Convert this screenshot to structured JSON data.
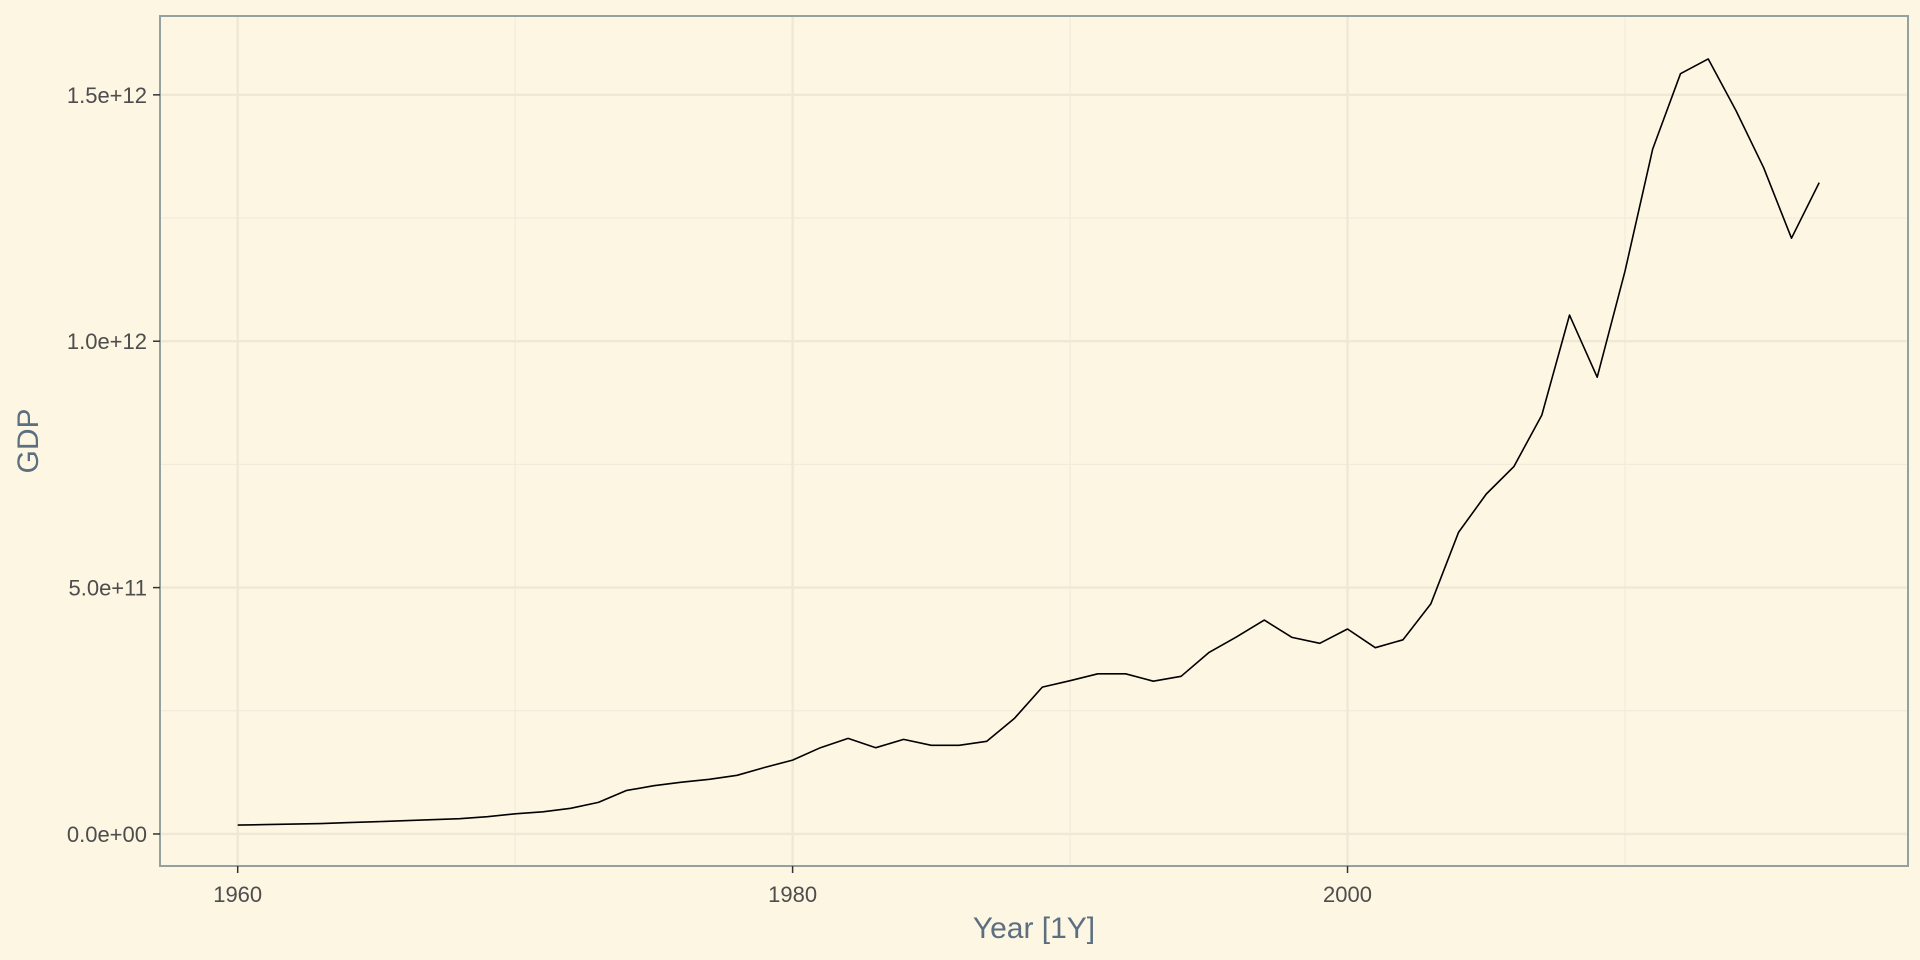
{
  "chart_data": {
    "type": "line",
    "xlabel": "Year [1Y]",
    "ylabel": "GDP",
    "xlim": [
      1957.2,
      2020.2
    ],
    "ylim": [
      -65000000000.0,
      1660000000000.0
    ],
    "x_ticks": [
      {
        "value": 1960,
        "label": "1960"
      },
      {
        "value": 1980,
        "label": "1980"
      },
      {
        "value": 2000,
        "label": "2000"
      }
    ],
    "x_minor_ticks": [
      1970,
      1990,
      2010
    ],
    "y_ticks": [
      {
        "value": 0,
        "label": "0.0e+00"
      },
      {
        "value": 500000000000,
        "label": "5.0e+11"
      },
      {
        "value": 1000000000000,
        "label": "1.0e+12"
      },
      {
        "value": 1500000000000,
        "label": "1.5e+12"
      }
    ],
    "y_minor_ticks": [
      250000000000,
      750000000000,
      1250000000000
    ],
    "grid": true,
    "series": [
      {
        "color": "#000000",
        "x": [
          1960,
          1961,
          1962,
          1963,
          1964,
          1965,
          1966,
          1967,
          1968,
          1969,
          1970,
          1971,
          1972,
          1973,
          1974,
          1975,
          1976,
          1977,
          1978,
          1979,
          1980,
          1981,
          1982,
          1983,
          1984,
          1985,
          1986,
          1987,
          1988,
          1989,
          1990,
          1991,
          1992,
          1993,
          1994,
          1995,
          1996,
          1997,
          1998,
          1999,
          2000,
          2001,
          2002,
          2003,
          2004,
          2005,
          2006,
          2007,
          2008,
          2009,
          2010,
          2011,
          2012,
          2013,
          2014,
          2015,
          2016,
          2017
        ],
        "values": [
          18000000000.0,
          19000000000.0,
          20000000000.0,
          21000000000.0,
          23000000000.0,
          25000000000.0,
          27000000000.0,
          29000000000.0,
          31000000000.0,
          35000000000.0,
          41000000000.0,
          45000000000.0,
          52000000000.0,
          64000000000.0,
          88000000000.0,
          98000000000.0,
          105000000000.0,
          111000000000.0,
          119000000000.0,
          135000000000.0,
          150000000000.0,
          175000000000.0,
          194000000000.0,
          175000000000.0,
          192000000000.0,
          180000000000.0,
          180000000000.0,
          188000000000.0,
          235000000000.0,
          298000000000.0,
          311000000000.0,
          325000000000.0,
          325000000000.0,
          310000000000.0,
          320000000000.0,
          368000000000.0,
          400000000000.0,
          434000000000.0,
          399000000000.0,
          387000000000.0,
          416000000000.0,
          378000000000.0,
          394000000000.0,
          467000000000.0,
          612000000000.0,
          690000000000.0,
          746000000000.0,
          850000000000.0,
          1053000000000.0,
          927000000000.0,
          1142000000000.0,
          1390000000000.0,
          1543000000000.0,
          1573000000000.0,
          1468000000000.0,
          1352000000000.0,
          1209000000000.0,
          1322000000000.0
        ]
      }
    ]
  }
}
